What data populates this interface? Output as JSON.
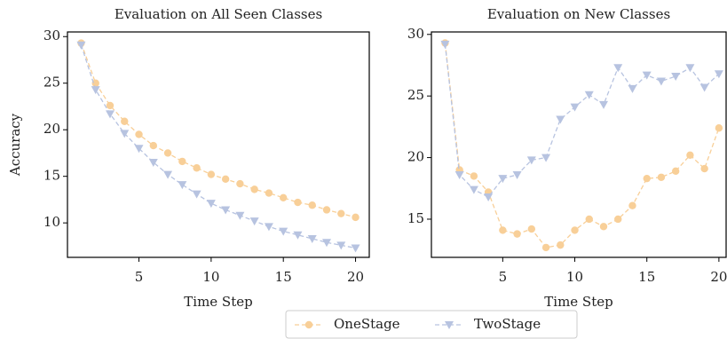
{
  "chart_data": [
    {
      "type": "line",
      "title": "Evaluation on All Seen Classes",
      "x_label": "Time Step",
      "y_label": "Accuracy",
      "x": [
        1,
        2,
        3,
        4,
        5,
        6,
        7,
        8,
        9,
        10,
        11,
        12,
        13,
        14,
        15,
        16,
        17,
        18,
        19,
        20
      ],
      "xlim": [
        0.05,
        20.95
      ],
      "xticks": [
        5,
        10,
        15,
        20
      ],
      "ylim": [
        6.3,
        30.5
      ],
      "yticks": [
        10,
        15,
        20,
        25,
        30
      ],
      "series": [
        {
          "name": "OneStage",
          "color": "#f8cf98",
          "marker": "circle",
          "values": [
            29.3,
            25.0,
            22.6,
            20.9,
            19.5,
            18.3,
            17.5,
            16.6,
            15.9,
            15.2,
            14.7,
            14.2,
            13.6,
            13.2,
            12.7,
            12.2,
            11.9,
            11.4,
            11.0,
            10.6
          ]
        },
        {
          "name": "TwoStage",
          "color": "#b7c3e0",
          "marker": "triangle-down",
          "values": [
            29.1,
            24.3,
            21.7,
            19.6,
            18.0,
            16.5,
            15.2,
            14.1,
            13.1,
            12.1,
            11.4,
            10.8,
            10.2,
            9.6,
            9.1,
            8.7,
            8.3,
            7.9,
            7.6,
            7.3
          ]
        }
      ]
    },
    {
      "type": "line",
      "title": "Evaluation on New Classes",
      "x_label": "Time Step",
      "x": [
        1,
        2,
        3,
        4,
        5,
        6,
        7,
        8,
        9,
        10,
        11,
        12,
        13,
        14,
        15,
        16,
        17,
        18,
        19,
        20
      ],
      "xlim": [
        0.05,
        20.5
      ],
      "xticks": [
        5,
        10,
        15,
        20
      ],
      "ylim": [
        11.9,
        30.2
      ],
      "yticks": [
        15,
        20,
        25,
        30
      ],
      "series": [
        {
          "color": "#f8cf98",
          "marker": "circle",
          "values": [
            29.3,
            19.0,
            18.5,
            17.2,
            14.1,
            13.8,
            14.2,
            12.7,
            12.9,
            14.1,
            15.0,
            14.4,
            15.0,
            16.1,
            18.3,
            18.4,
            18.9,
            20.2,
            19.1,
            22.4
          ]
        },
        {
          "color": "#b7c3e0",
          "marker": "triangle-down",
          "values": [
            29.2,
            18.6,
            17.4,
            16.8,
            18.3,
            18.6,
            19.8,
            20.0,
            23.1,
            24.1,
            25.1,
            24.3,
            27.3,
            25.6,
            26.7,
            26.2,
            26.6,
            27.3,
            25.7,
            26.8
          ]
        }
      ]
    }
  ]
}
